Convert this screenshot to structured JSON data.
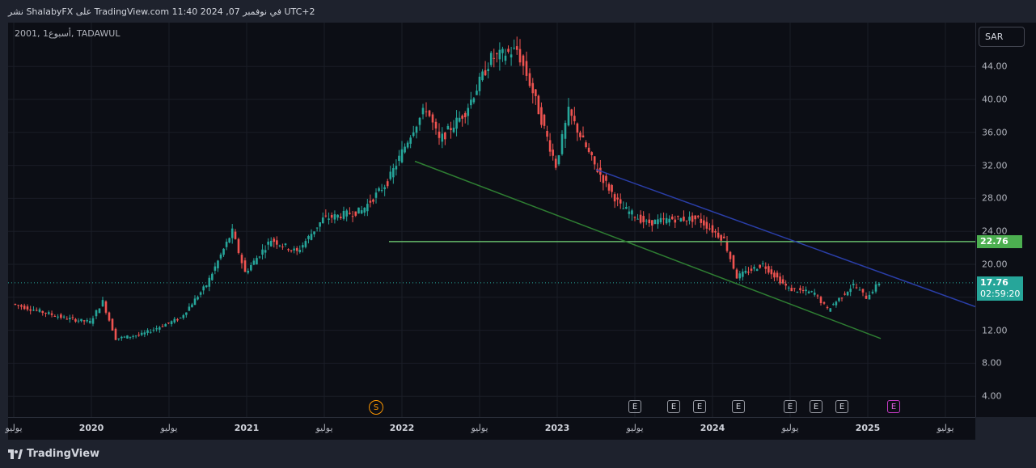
{
  "header": {
    "publish_text": "نشر ShalabyFX على TradingView.com 11:40 2024 ,07 في نوفمبر UTC+2"
  },
  "symbol_info": "2001, أسبوع1, TADAWUL",
  "currency_button": "SAR",
  "price_tags": {
    "level": "22.76",
    "last_price": "17.76",
    "countdown": "02:59:20"
  },
  "events": {
    "split_label": "S",
    "earnings_label": "E"
  },
  "footer": {
    "brand": "TradingView"
  },
  "colors": {
    "background": "#0c0e15",
    "up": "#26a69a",
    "down": "#ef5350",
    "blue_trendline": "#2a3ea8",
    "green_trendline": "#2e7d32",
    "horizontal_level": "#66bb6a"
  },
  "chart_data": {
    "type": "candlestick",
    "interval": "1W",
    "symbol": "2001",
    "exchange": "TADAWUL",
    "currency": "SAR",
    "y_range": [
      2.0,
      50.0
    ],
    "y_ticks": [
      "4.00",
      "8.00",
      "12.00",
      "16.00",
      "20.00",
      "24.00",
      "28.00",
      "32.00",
      "36.00",
      "40.00",
      "44.00"
    ],
    "x_labels": [
      "يوليو",
      "2020",
      "يوليو",
      "2021",
      "يوليو",
      "2022",
      "يوليو",
      "2023",
      "يوليو",
      "2024",
      "يوليو",
      "2025",
      "يوليو"
    ],
    "price_anchors": [
      [
        "2019-07",
        15.2
      ],
      [
        "2019-11",
        13.5
      ],
      [
        "2020-01",
        13.0
      ],
      [
        "2020-02",
        15.5
      ],
      [
        "2020-03",
        11.0
      ],
      [
        "2020-05",
        11.5
      ],
      [
        "2020-08",
        13.5
      ],
      [
        "2020-10",
        17.5
      ],
      [
        "2020-12",
        24.0
      ],
      [
        "2021-01",
        19.0
      ],
      [
        "2021-03",
        23.0
      ],
      [
        "2021-05",
        21.5
      ],
      [
        "2021-07",
        25.5
      ],
      [
        "2021-10",
        26.5
      ],
      [
        "2021-12",
        30.0
      ],
      [
        "2022-02",
        36.5
      ],
      [
        "2022-03",
        39.0
      ],
      [
        "2022-04",
        35.0
      ],
      [
        "2022-06",
        38.5
      ],
      [
        "2022-08",
        45.0
      ],
      [
        "2022-10",
        46.0
      ],
      [
        "2022-11",
        42.0
      ],
      [
        "2023-01",
        32.0
      ],
      [
        "2023-02",
        38.5
      ],
      [
        "2023-04",
        32.0
      ],
      [
        "2023-06",
        27.0
      ],
      [
        "2023-08",
        25.0
      ],
      [
        "2023-10",
        25.5
      ],
      [
        "2023-12",
        25.5
      ],
      [
        "2024-02",
        23.0
      ],
      [
        "2024-03",
        18.5
      ],
      [
        "2024-05",
        20.0
      ],
      [
        "2024-07",
        17.0
      ],
      [
        "2024-09",
        16.5
      ],
      [
        "2024-10",
        14.5
      ],
      [
        "2024-12",
        17.5
      ],
      [
        "2025-01",
        16.0
      ],
      [
        "2025-02",
        17.76
      ]
    ],
    "trendlines": [
      {
        "name": "blue descending resistance",
        "from": [
          "2023-04",
          31.5
        ],
        "to": [
          "2026-05",
          10.5
        ]
      },
      {
        "name": "green descending support",
        "from": [
          "2022-02",
          32.5
        ],
        "to": [
          "2025-02",
          11.0
        ]
      }
    ],
    "horizontal_level": {
      "value": 22.76,
      "from": "2021-12"
    },
    "last_price_line": 17.76,
    "earnings_dates": [
      "2023-07",
      "2023-10",
      "2023-12",
      "2024-03",
      "2024-07",
      "2024-09",
      "2024-11"
    ],
    "future_earnings_date": "2025-03",
    "split_date": "2021-11"
  }
}
